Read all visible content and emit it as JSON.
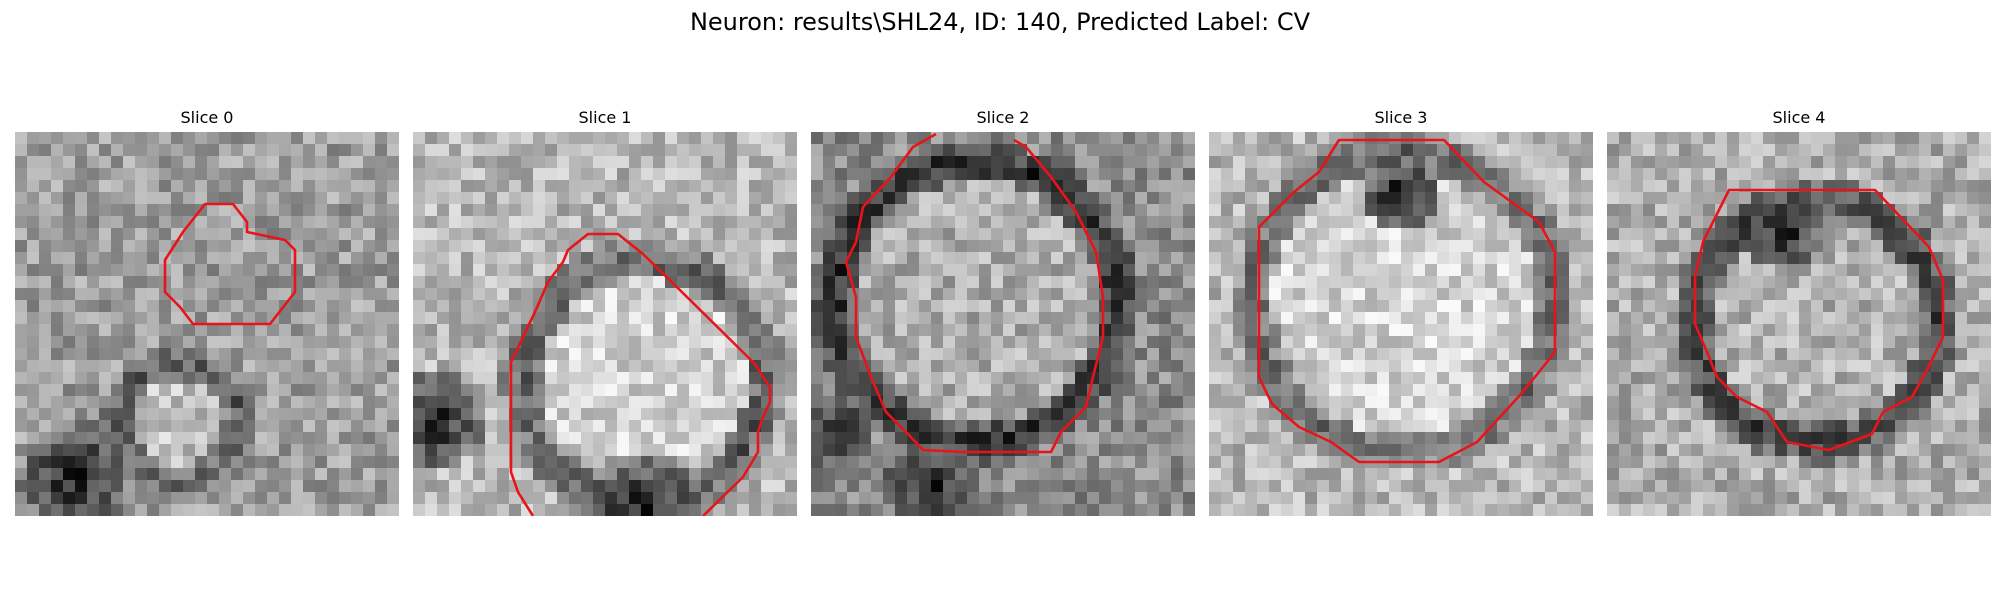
{
  "figure": {
    "title": "Neuron: results\\SHL24, ID: 140, Predicted Label: CV",
    "contour_color": "#e8141a"
  },
  "slices": [
    {
      "label": "Slice 0"
    },
    {
      "label": "Slice 1"
    },
    {
      "label": "Slice 2"
    },
    {
      "label": "Slice 3"
    },
    {
      "label": "Slice 4"
    }
  ]
}
